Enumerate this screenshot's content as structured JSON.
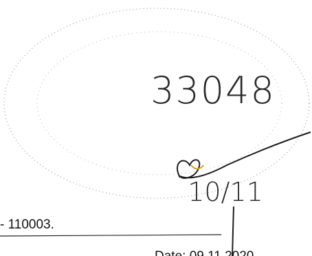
{
  "number": "33048",
  "handwritten_date": "10/11",
  "address_fragment": "- 110003.",
  "date": "Date: 09.11.2020"
}
